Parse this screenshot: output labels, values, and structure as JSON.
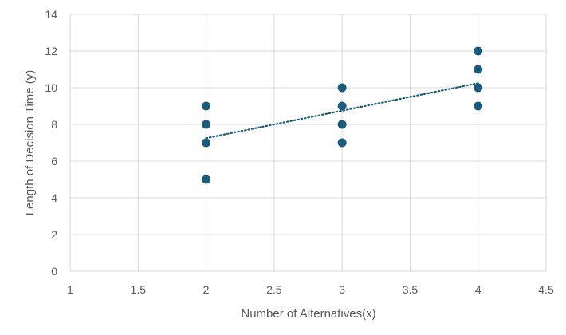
{
  "chart_data": {
    "type": "scatter",
    "title": "",
    "xlabel": "Number of Alternatives(x)",
    "ylabel": "Length of Decision Time (y)",
    "xlim": [
      1,
      4.5
    ],
    "ylim": [
      0,
      14
    ],
    "xticks": [
      1,
      1.5,
      2,
      2.5,
      3,
      3.5,
      4,
      4.5
    ],
    "yticks": [
      0,
      2,
      4,
      6,
      8,
      10,
      12,
      14
    ],
    "xtick_labels": [
      "1",
      "1.5",
      "2",
      "2.5",
      "3",
      "3.5",
      "4",
      "4.5"
    ],
    "ytick_labels": [
      "0",
      "2",
      "4",
      "6",
      "8",
      "10",
      "12",
      "14"
    ],
    "grid": true,
    "legend": "none",
    "points": [
      {
        "x": 2,
        "y": 9
      },
      {
        "x": 2,
        "y": 8
      },
      {
        "x": 2,
        "y": 7
      },
      {
        "x": 2,
        "y": 5
      },
      {
        "x": 3,
        "y": 10
      },
      {
        "x": 3,
        "y": 9
      },
      {
        "x": 3,
        "y": 8
      },
      {
        "x": 3,
        "y": 7
      },
      {
        "x": 4,
        "y": 12
      },
      {
        "x": 4,
        "y": 11
      },
      {
        "x": 4,
        "y": 10
      },
      {
        "x": 4,
        "y": 9
      }
    ],
    "trendline": {
      "type": "linear",
      "style": "dotted",
      "x_range": [
        2,
        4
      ],
      "y_values": [
        7.25,
        10.25
      ]
    },
    "colors": {
      "marker": "#1a5c7a",
      "trendline": "#1a5c7a",
      "grid": "#d9d9d9",
      "text": "#595959"
    }
  }
}
